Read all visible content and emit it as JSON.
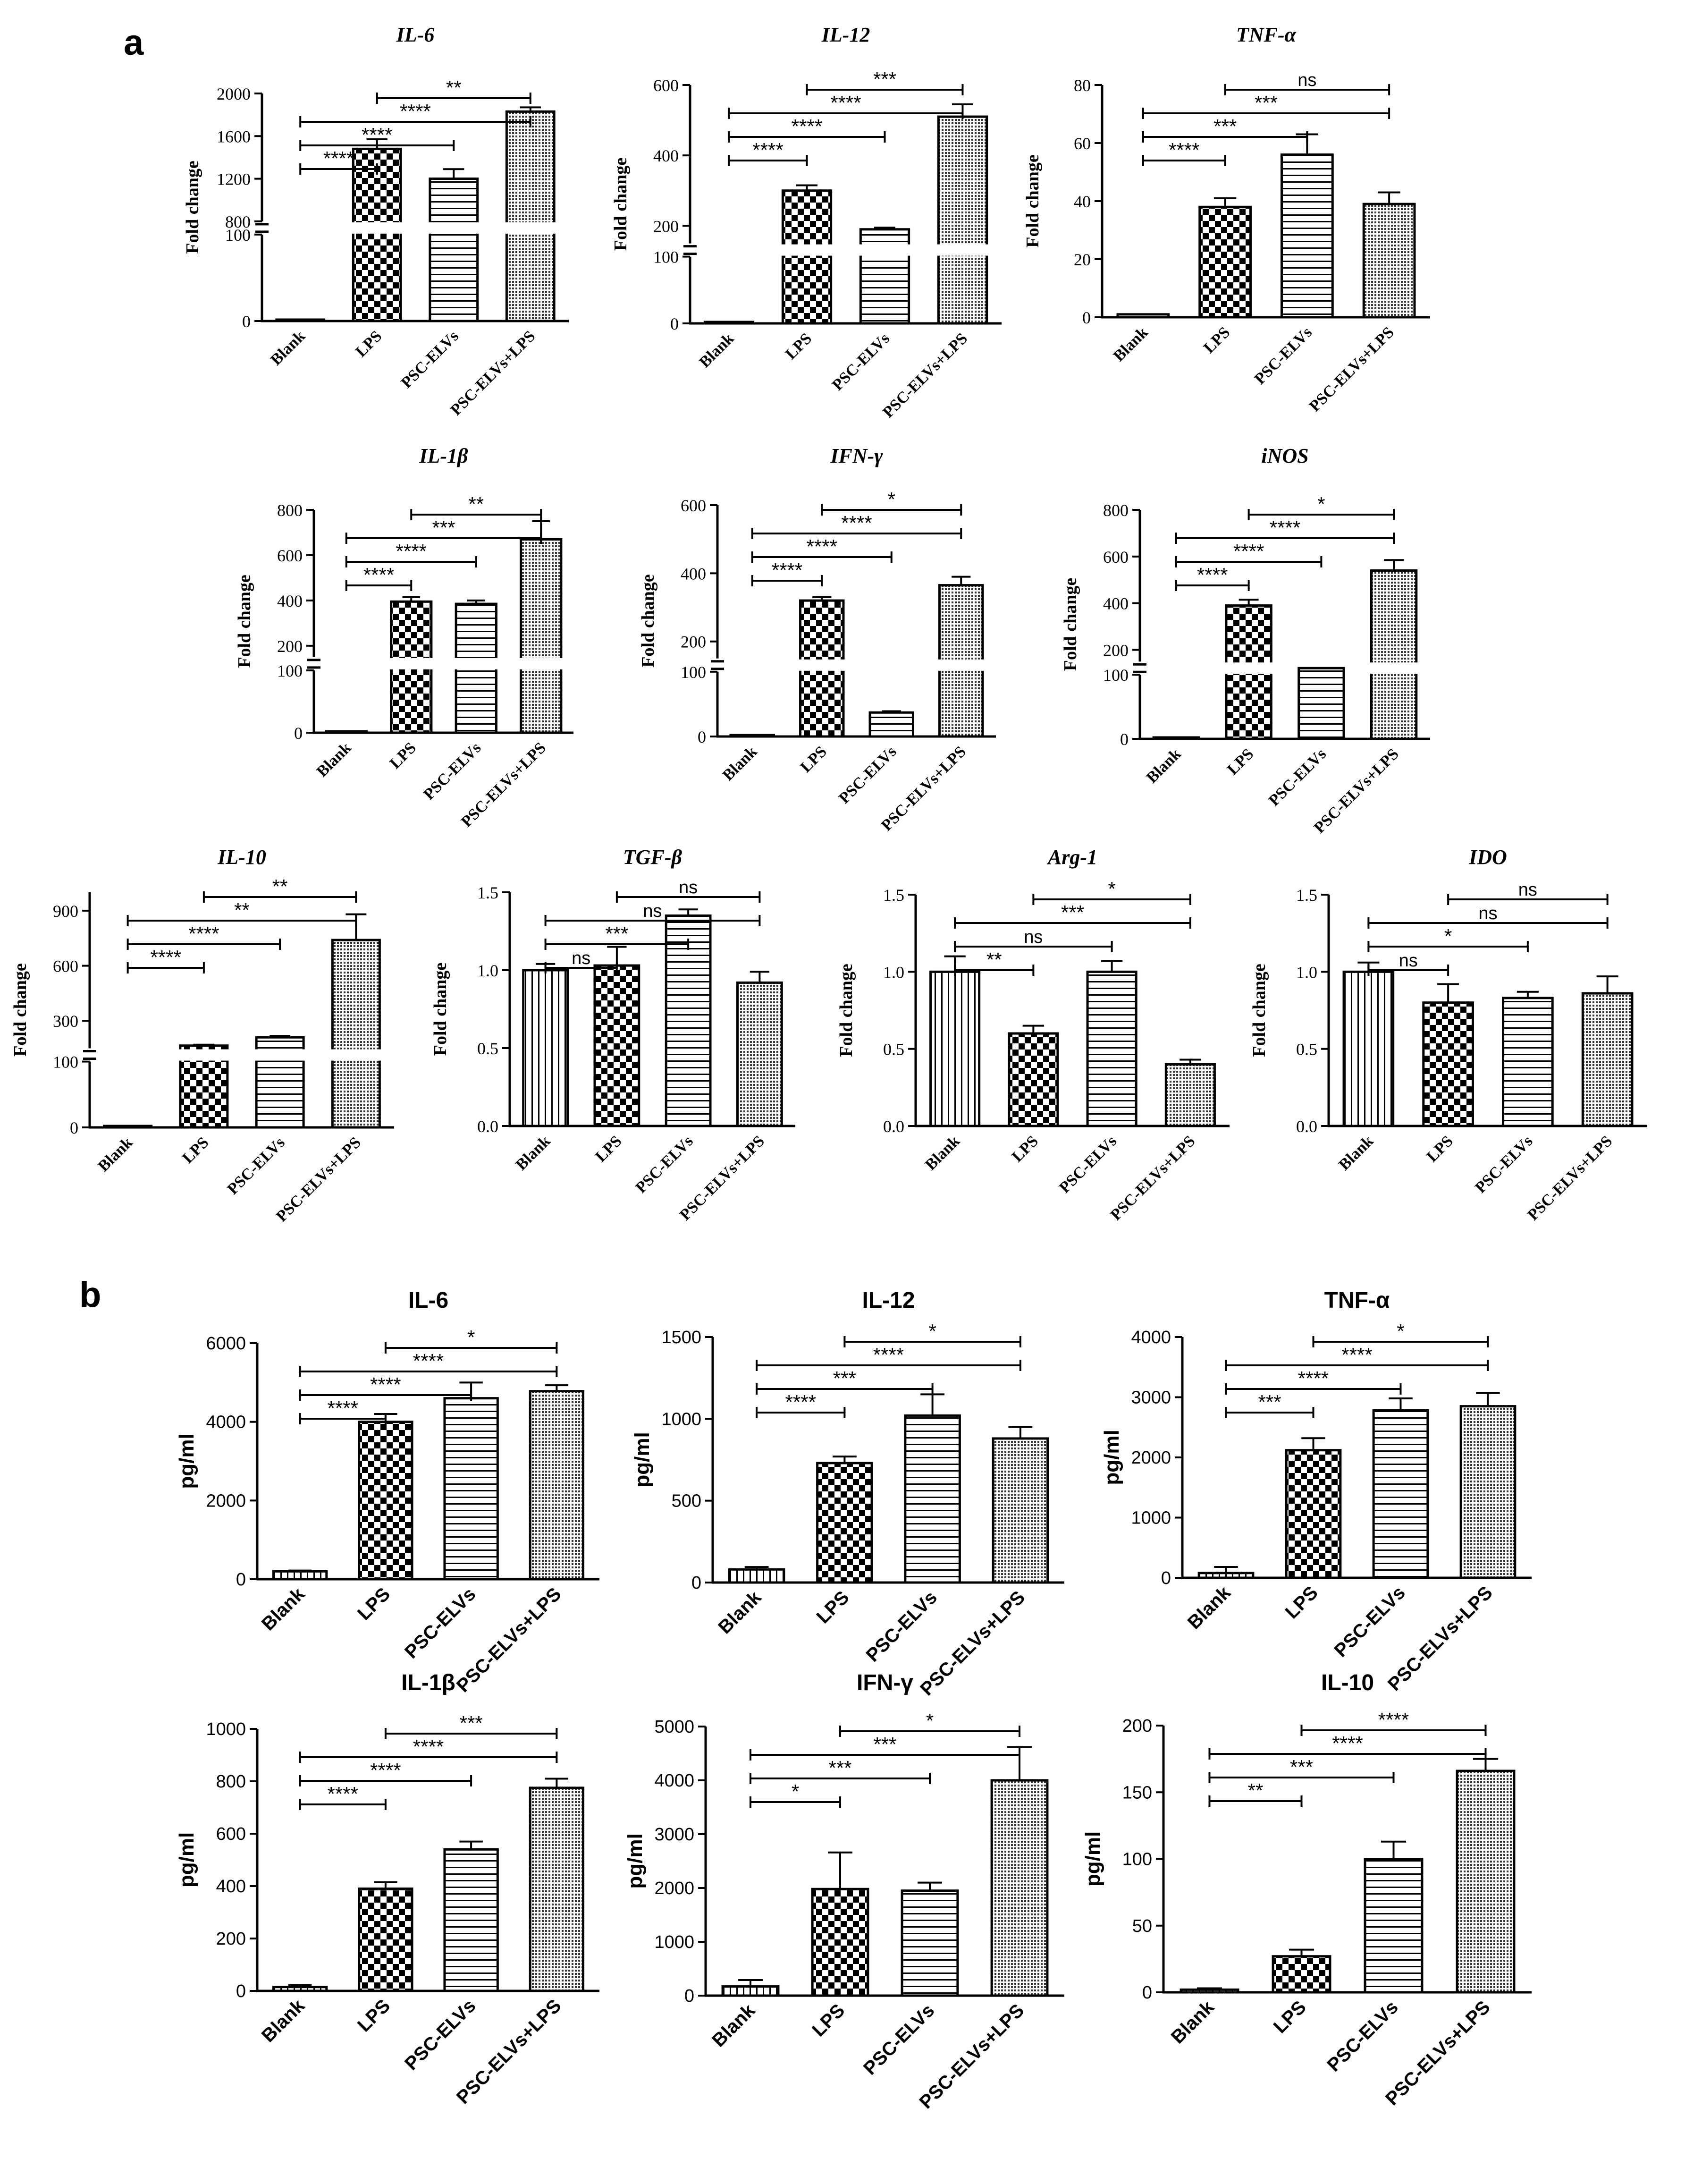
{
  "figure": {
    "panel_a_label": "a",
    "panel_b_label": "b",
    "categories": [
      "Blank",
      "LPS",
      "PSC-ELVs",
      "PSC-ELVs+LPS"
    ],
    "colors": {
      "ink": "#000000",
      "background": "#ffffff"
    }
  },
  "chart_data": [
    {
      "id": "a-il6",
      "panel": "a",
      "type": "bar",
      "title": "IL-6",
      "ylabel": "Fold change",
      "categories": [
        "Blank",
        "LPS",
        "PSC-ELVs",
        "PSC-ELVs+LPS"
      ],
      "values": [
        1,
        1480,
        1200,
        1830
      ],
      "errors": [
        0,
        90,
        90,
        40
      ],
      "ylim": [
        0,
        2000
      ],
      "yticks": [
        0,
        100,
        800,
        1200,
        1600,
        2000
      ],
      "axis_break": [
        100,
        800
      ],
      "patterns": [
        "blank",
        "check",
        "hlines",
        "dots"
      ],
      "comparisons": [
        {
          "from": "Blank",
          "to": "LPS",
          "label": "****"
        },
        {
          "from": "Blank",
          "to": "PSC-ELVs",
          "label": "****"
        },
        {
          "from": "Blank",
          "to": "PSC-ELVs+LPS",
          "label": "****"
        },
        {
          "from": "LPS",
          "to": "PSC-ELVs+LPS",
          "label": "**"
        }
      ]
    },
    {
      "id": "a-il12",
      "panel": "a",
      "type": "bar",
      "title": "IL-12",
      "ylabel": "Fold change",
      "categories": [
        "Blank",
        "LPS",
        "PSC-ELVs",
        "PSC-ELVs+LPS"
      ],
      "values": [
        2,
        300,
        190,
        510
      ],
      "errors": [
        0,
        15,
        5,
        35
      ],
      "ylim": [
        0,
        600
      ],
      "yticks": [
        0,
        100,
        200,
        400,
        600
      ],
      "axis_break": [
        100,
        150
      ],
      "patterns": [
        "blank",
        "check",
        "hlines",
        "dots"
      ],
      "comparisons": [
        {
          "from": "Blank",
          "to": "LPS",
          "label": "****"
        },
        {
          "from": "Blank",
          "to": "PSC-ELVs",
          "label": "****"
        },
        {
          "from": "Blank",
          "to": "PSC-ELVs+LPS",
          "label": "****"
        },
        {
          "from": "LPS",
          "to": "PSC-ELVs+LPS",
          "label": "***"
        }
      ]
    },
    {
      "id": "a-tnfa",
      "panel": "a",
      "type": "bar",
      "title": "TNF-α",
      "ylabel": "Fold change",
      "categories": [
        "Blank",
        "LPS",
        "PSC-ELVs",
        "PSC-ELVs+LPS"
      ],
      "values": [
        1,
        38,
        56,
        39
      ],
      "errors": [
        0,
        3,
        7,
        4
      ],
      "ylim": [
        0,
        80
      ],
      "yticks": [
        0,
        20,
        40,
        60,
        80
      ],
      "axis_break": null,
      "patterns": [
        "blank",
        "check",
        "hlines",
        "dots"
      ],
      "comparisons": [
        {
          "from": "Blank",
          "to": "LPS",
          "label": "****"
        },
        {
          "from": "Blank",
          "to": "PSC-ELVs",
          "label": "***"
        },
        {
          "from": "Blank",
          "to": "PSC-ELVs+LPS",
          "label": "***"
        },
        {
          "from": "LPS",
          "to": "PSC-ELVs+LPS",
          "label": "ns"
        }
      ]
    },
    {
      "id": "a-il1b",
      "panel": "a",
      "type": "bar",
      "title": "IL-1β",
      "ylabel": "Fold change",
      "categories": [
        "Blank",
        "LPS",
        "PSC-ELVs",
        "PSC-ELVs+LPS"
      ],
      "values": [
        1,
        395,
        385,
        670
      ],
      "errors": [
        0,
        20,
        15,
        80
      ],
      "ylim": [
        0,
        800
      ],
      "yticks": [
        0,
        100,
        200,
        400,
        600,
        800
      ],
      "axis_break": [
        100,
        150
      ],
      "patterns": [
        "blank",
        "check",
        "hlines",
        "dots"
      ],
      "comparisons": [
        {
          "from": "Blank",
          "to": "LPS",
          "label": "****"
        },
        {
          "from": "Blank",
          "to": "PSC-ELVs",
          "label": "****"
        },
        {
          "from": "Blank",
          "to": "PSC-ELVs+LPS",
          "label": "***"
        },
        {
          "from": "LPS",
          "to": "PSC-ELVs+LPS",
          "label": "**"
        }
      ]
    },
    {
      "id": "a-ifng",
      "panel": "a",
      "type": "bar",
      "title": "IFN-γ",
      "ylabel": "Fold change",
      "categories": [
        "Blank",
        "LPS",
        "PSC-ELVs",
        "PSC-ELVs+LPS"
      ],
      "values": [
        1,
        320,
        37,
        365
      ],
      "errors": [
        0,
        10,
        2,
        25
      ],
      "ylim": [
        0,
        600
      ],
      "yticks": [
        0,
        100,
        200,
        400,
        600
      ],
      "axis_break": [
        100,
        150
      ],
      "patterns": [
        "blank",
        "check",
        "hlines",
        "dots"
      ],
      "comparisons": [
        {
          "from": "Blank",
          "to": "LPS",
          "label": "****"
        },
        {
          "from": "Blank",
          "to": "PSC-ELVs",
          "label": "****"
        },
        {
          "from": "Blank",
          "to": "PSC-ELVs+LPS",
          "label": "****"
        },
        {
          "from": "LPS",
          "to": "PSC-ELVs+LPS",
          "label": "*"
        }
      ]
    },
    {
      "id": "a-inos",
      "panel": "a",
      "type": "bar",
      "title": "iNOS",
      "ylabel": "Fold change",
      "categories": [
        "Blank",
        "LPS",
        "PSC-ELVs",
        "PSC-ELVs+LPS"
      ],
      "values": [
        1,
        390,
        140,
        540
      ],
      "errors": [
        0,
        25,
        3,
        45
      ],
      "ylim": [
        0,
        800
      ],
      "yticks": [
        0,
        100,
        200,
        400,
        600,
        800
      ],
      "axis_break": [
        100,
        150
      ],
      "patterns": [
        "blank",
        "check",
        "hlines",
        "dots"
      ],
      "comparisons": [
        {
          "from": "Blank",
          "to": "LPS",
          "label": "****"
        },
        {
          "from": "Blank",
          "to": "PSC-ELVs",
          "label": "****"
        },
        {
          "from": "Blank",
          "to": "PSC-ELVs+LPS",
          "label": "****"
        },
        {
          "from": "LPS",
          "to": "PSC-ELVs+LPS",
          "label": "*"
        }
      ]
    },
    {
      "id": "a-il10",
      "panel": "a",
      "type": "bar",
      "title": "IL-10",
      "ylabel": "Fold change",
      "categories": [
        "Blank",
        "LPS",
        "PSC-ELVs",
        "PSC-ELVs+LPS"
      ],
      "values": [
        1,
        165,
        210,
        740
      ],
      "errors": [
        0,
        5,
        8,
        140
      ],
      "ylim": [
        0,
        1000
      ],
      "yticks": [
        0,
        100,
        300,
        600,
        900
      ],
      "axis_break": [
        100,
        150
      ],
      "patterns": [
        "blank",
        "check",
        "hlines",
        "dots"
      ],
      "comparisons": [
        {
          "from": "Blank",
          "to": "LPS",
          "label": "****"
        },
        {
          "from": "Blank",
          "to": "PSC-ELVs",
          "label": "****"
        },
        {
          "from": "Blank",
          "to": "PSC-ELVs+LPS",
          "label": "**"
        },
        {
          "from": "LPS",
          "to": "PSC-ELVs+LPS",
          "label": "**"
        }
      ]
    },
    {
      "id": "a-tgfb",
      "panel": "a",
      "type": "bar",
      "title": "TGF-β",
      "ylabel": "Fold change",
      "categories": [
        "Blank",
        "LPS",
        "PSC-ELVs",
        "PSC-ELVs+LPS"
      ],
      "values": [
        1.0,
        1.03,
        1.35,
        0.92
      ],
      "errors": [
        0.04,
        0.12,
        0.04,
        0.07
      ],
      "ylim": [
        0,
        1.5
      ],
      "yticks": [
        0.0,
        0.5,
        1.0,
        1.5
      ],
      "ytick_decimals": 1,
      "axis_break": null,
      "patterns": [
        "vlines",
        "check",
        "hlines",
        "dots"
      ],
      "comparisons": [
        {
          "from": "Blank",
          "to": "LPS",
          "label": "ns"
        },
        {
          "from": "Blank",
          "to": "PSC-ELVs",
          "label": "***"
        },
        {
          "from": "Blank",
          "to": "PSC-ELVs+LPS",
          "label": "ns"
        },
        {
          "from": "LPS",
          "to": "PSC-ELVs+LPS",
          "label": "ns"
        }
      ]
    },
    {
      "id": "a-arg1",
      "panel": "a",
      "type": "bar",
      "title": "Arg-1",
      "ylabel": "Fold change",
      "categories": [
        "Blank",
        "LPS",
        "PSC-ELVs",
        "PSC-ELVs+LPS"
      ],
      "values": [
        1.0,
        0.6,
        1.0,
        0.4
      ],
      "errors": [
        0.1,
        0.05,
        0.07,
        0.03
      ],
      "ylim": [
        0,
        1.5
      ],
      "yticks": [
        0.0,
        0.5,
        1.0,
        1.5
      ],
      "ytick_decimals": 1,
      "axis_break": null,
      "patterns": [
        "vlines",
        "check",
        "hlines",
        "dots"
      ],
      "comparisons": [
        {
          "from": "Blank",
          "to": "LPS",
          "label": "**"
        },
        {
          "from": "Blank",
          "to": "PSC-ELVs",
          "label": "ns"
        },
        {
          "from": "Blank",
          "to": "PSC-ELVs+LPS",
          "label": "***"
        },
        {
          "from": "LPS",
          "to": "PSC-ELVs+LPS",
          "label": "*"
        }
      ]
    },
    {
      "id": "a-ido",
      "panel": "a",
      "type": "bar",
      "title": "IDO",
      "ylabel": "Fold change",
      "categories": [
        "Blank",
        "LPS",
        "PSC-ELVs",
        "PSC-ELVs+LPS"
      ],
      "values": [
        1.0,
        0.8,
        0.83,
        0.86
      ],
      "errors": [
        0.06,
        0.12,
        0.04,
        0.11
      ],
      "ylim": [
        0,
        1.5
      ],
      "yticks": [
        0.0,
        0.5,
        1.0,
        1.5
      ],
      "ytick_decimals": 1,
      "axis_break": null,
      "patterns": [
        "vlines",
        "check",
        "hlines",
        "dots"
      ],
      "comparisons": [
        {
          "from": "Blank",
          "to": "LPS",
          "label": "ns"
        },
        {
          "from": "Blank",
          "to": "PSC-ELVs",
          "label": "*"
        },
        {
          "from": "Blank",
          "to": "PSC-ELVs+LPS",
          "label": "ns"
        },
        {
          "from": "LPS",
          "to": "PSC-ELVs+LPS",
          "label": "ns"
        }
      ]
    },
    {
      "id": "b-il6",
      "panel": "b",
      "type": "bar",
      "title": "IL-6",
      "ylabel": "pg/ml",
      "categories": [
        "Blank",
        "LPS",
        "PSC-ELVs",
        "PSC-ELVs+LPS"
      ],
      "values": [
        200,
        4000,
        4600,
        4780
      ],
      "errors": [
        20,
        200,
        400,
        150
      ],
      "ylim": [
        0,
        6000
      ],
      "yticks": [
        0,
        2000,
        4000,
        6000
      ],
      "axis_break": null,
      "patterns": [
        "vlines",
        "check",
        "hlines",
        "dots"
      ],
      "comparisons": [
        {
          "from": "Blank",
          "to": "LPS",
          "label": "****"
        },
        {
          "from": "Blank",
          "to": "PSC-ELVs",
          "label": "****"
        },
        {
          "from": "Blank",
          "to": "PSC-ELVs+LPS",
          "label": "****"
        },
        {
          "from": "LPS",
          "to": "PSC-ELVs+LPS",
          "label": "*"
        }
      ]
    },
    {
      "id": "b-il12",
      "panel": "b",
      "type": "bar",
      "title": "IL-12",
      "ylabel": "pg/ml",
      "categories": [
        "Blank",
        "LPS",
        "PSC-ELVs",
        "PSC-ELVs+LPS"
      ],
      "values": [
        80,
        730,
        1020,
        880
      ],
      "errors": [
        15,
        40,
        130,
        70
      ],
      "ylim": [
        0,
        1500
      ],
      "yticks": [
        0,
        500,
        1000,
        1500
      ],
      "axis_break": null,
      "patterns": [
        "vlines",
        "check",
        "hlines",
        "dots"
      ],
      "comparisons": [
        {
          "from": "Blank",
          "to": "LPS",
          "label": "****"
        },
        {
          "from": "Blank",
          "to": "PSC-ELVs",
          "label": "***"
        },
        {
          "from": "Blank",
          "to": "PSC-ELVs+LPS",
          "label": "****"
        },
        {
          "from": "LPS",
          "to": "PSC-ELVs+LPS",
          "label": "*"
        }
      ]
    },
    {
      "id": "b-tnfa",
      "panel": "b",
      "type": "bar",
      "title": "TNF-α",
      "ylabel": "pg/ml",
      "categories": [
        "Blank",
        "LPS",
        "PSC-ELVs",
        "PSC-ELVs+LPS"
      ],
      "values": [
        80,
        2120,
        2780,
        2850
      ],
      "errors": [
        100,
        200,
        200,
        220
      ],
      "ylim": [
        0,
        4000
      ],
      "yticks": [
        0,
        1000,
        2000,
        3000,
        4000
      ],
      "axis_break": null,
      "patterns": [
        "vlines",
        "check",
        "hlines",
        "dots"
      ],
      "comparisons": [
        {
          "from": "Blank",
          "to": "LPS",
          "label": "***"
        },
        {
          "from": "Blank",
          "to": "PSC-ELVs",
          "label": "****"
        },
        {
          "from": "Blank",
          "to": "PSC-ELVs+LPS",
          "label": "****"
        },
        {
          "from": "LPS",
          "to": "PSC-ELVs+LPS",
          "label": "*"
        }
      ]
    },
    {
      "id": "b-il1b",
      "panel": "b",
      "type": "bar",
      "title": "IL-1β",
      "ylabel": "pg/ml",
      "categories": [
        "Blank",
        "LPS",
        "PSC-ELVs",
        "PSC-ELVs+LPS"
      ],
      "values": [
        15,
        390,
        540,
        775
      ],
      "errors": [
        8,
        25,
        30,
        35
      ],
      "ylim": [
        0,
        1000
      ],
      "yticks": [
        0,
        200,
        400,
        600,
        800,
        1000
      ],
      "axis_break": null,
      "patterns": [
        "vlines",
        "check",
        "hlines",
        "dots"
      ],
      "comparisons": [
        {
          "from": "Blank",
          "to": "LPS",
          "label": "****"
        },
        {
          "from": "Blank",
          "to": "PSC-ELVs",
          "label": "****"
        },
        {
          "from": "Blank",
          "to": "PSC-ELVs+LPS",
          "label": "****"
        },
        {
          "from": "LPS",
          "to": "PSC-ELVs+LPS",
          "label": "***"
        }
      ]
    },
    {
      "id": "b-ifng",
      "panel": "b",
      "type": "bar",
      "title": "IFN-γ",
      "ylabel": "pg/ml",
      "categories": [
        "Blank",
        "LPS",
        "PSC-ELVs",
        "PSC-ELVs+LPS"
      ],
      "values": [
        170,
        1980,
        1950,
        4000
      ],
      "errors": [
        120,
        680,
        150,
        620
      ],
      "ylim": [
        0,
        5000
      ],
      "yticks": [
        0,
        1000,
        2000,
        3000,
        4000,
        5000
      ],
      "axis_break": null,
      "patterns": [
        "vlines",
        "check",
        "hlines",
        "dots"
      ],
      "comparisons": [
        {
          "from": "Blank",
          "to": "LPS",
          "label": "*"
        },
        {
          "from": "Blank",
          "to": "PSC-ELVs",
          "label": "***"
        },
        {
          "from": "Blank",
          "to": "PSC-ELVs+LPS",
          "label": "***"
        },
        {
          "from": "LPS",
          "to": "PSC-ELVs+LPS",
          "label": "*"
        }
      ]
    },
    {
      "id": "b-il10",
      "panel": "b",
      "type": "bar",
      "title": "IL-10",
      "ylabel": "pg/ml",
      "categories": [
        "Blank",
        "LPS",
        "PSC-ELVs",
        "PSC-ELVs+LPS"
      ],
      "values": [
        2,
        27,
        100,
        166
      ],
      "errors": [
        1,
        5,
        13,
        9
      ],
      "ylim": [
        0,
        200
      ],
      "yticks": [
        0,
        50,
        100,
        150,
        200
      ],
      "axis_break": null,
      "patterns": [
        "vlines",
        "check",
        "hlines",
        "dots"
      ],
      "comparisons": [
        {
          "from": "Blank",
          "to": "LPS",
          "label": "**"
        },
        {
          "from": "Blank",
          "to": "PSC-ELVs",
          "label": "***"
        },
        {
          "from": "Blank",
          "to": "PSC-ELVs+LPS",
          "label": "****"
        },
        {
          "from": "LPS",
          "to": "PSC-ELVs+LPS",
          "label": "****"
        }
      ]
    }
  ]
}
